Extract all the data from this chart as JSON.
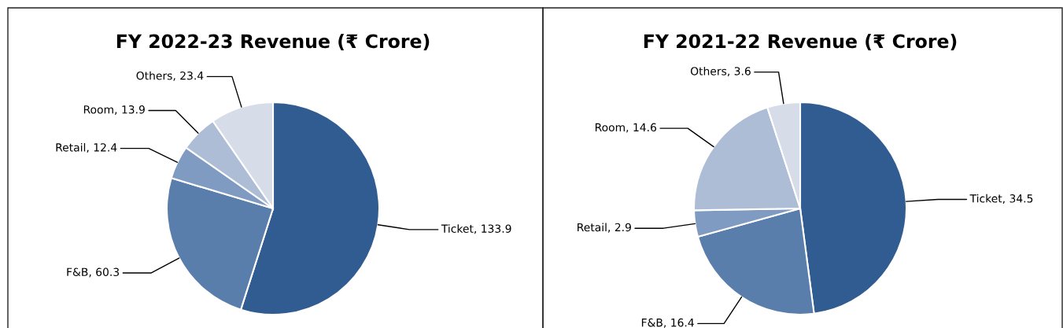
{
  "chart_data": [
    {
      "type": "pie",
      "title": "FY 2022-23 Revenue (₹ Crore)",
      "categories": [
        "Ticket",
        "F&B",
        "Retail",
        "Room",
        "Others"
      ],
      "values": [
        133.9,
        60.3,
        12.4,
        13.9,
        23.4
      ],
      "colors": [
        "#305c91",
        "#5a7eab",
        "#7f9bc2",
        "#adbdd6",
        "#d6dde8"
      ],
      "value_labels": [
        ", 133.9",
        ", 60.3",
        ", 12.4",
        ", 13.9",
        ", 23.4"
      ]
    },
    {
      "type": "pie",
      "title": "FY 2021-22 Revenue (₹ Crore)",
      "categories": [
        "Ticket",
        "F&B",
        "Retail",
        "Room",
        "Others"
      ],
      "values": [
        34.5,
        16.4,
        2.9,
        14.6,
        3.6
      ],
      "colors": [
        "#305c91",
        "#5a7eab",
        "#7f9bc2",
        "#adbdd6",
        "#d6dde8"
      ],
      "value_labels": [
        ", 34.5",
        ", 16.4",
        ", 2.9",
        ", 14.6",
        ", 3.6"
      ]
    }
  ]
}
